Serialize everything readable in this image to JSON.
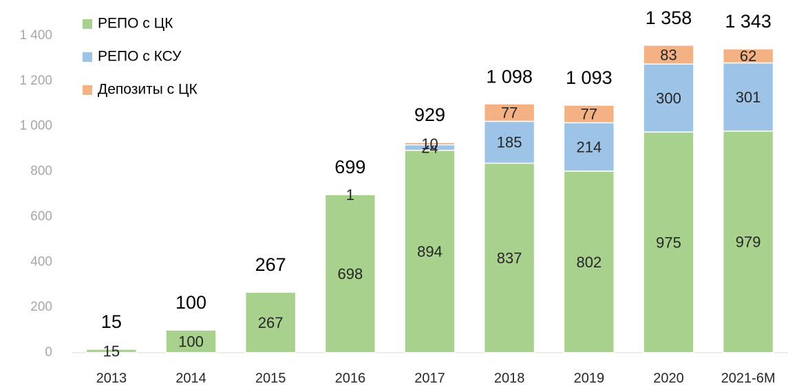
{
  "chart_data": {
    "type": "stacked_bar",
    "categories": [
      "2013",
      "2014",
      "2015",
      "2016",
      "2017",
      "2018",
      "2019",
      "2020",
      "2021-6M"
    ],
    "series": [
      {
        "name": "РЕПО с ЦК",
        "color": "#a9d18e",
        "values": [
          15,
          100,
          267,
          698,
          894,
          837,
          802,
          975,
          979
        ]
      },
      {
        "name": "РЕПО с КСУ",
        "color": "#9dc3e6",
        "values": [
          null,
          null,
          null,
          1,
          24,
          185,
          214,
          300,
          301
        ]
      },
      {
        "name": "Депозиты с ЦК",
        "color": "#f4b183",
        "values": [
          null,
          null,
          null,
          null,
          10,
          77,
          77,
          83,
          62
        ]
      }
    ],
    "totals": {
      "values": [
        15,
        100,
        267,
        699,
        929,
        1098,
        1093,
        1358,
        1343
      ],
      "value_labels": [
        "15",
        "100",
        "267",
        "699",
        "929",
        "1 098",
        "1 093",
        "1 358",
        "1 343"
      ]
    },
    "ylim": [
      0,
      1400
    ],
    "yticks": [
      0,
      200,
      400,
      600,
      800,
      {
        "value": 1000,
        "label": "1 000"
      },
      {
        "value": 1200,
        "label": "1 200"
      },
      {
        "value": 1400,
        "label": "1 400"
      }
    ],
    "grid": false
  }
}
